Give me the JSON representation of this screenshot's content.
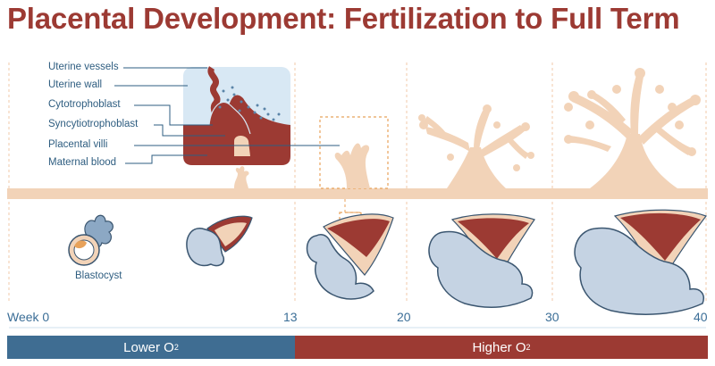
{
  "title": "Placental Development: Fertilization to Full Term",
  "labels": {
    "uterine_vessels": "Uterine vessels",
    "uterine_wall": "Uterine wall",
    "cytotrophoblast": "Cytotrophoblast",
    "syncytiotrophoblast": "Syncytiotrophoblast",
    "placental_villi": "Placental villi",
    "maternal_blood": "Maternal blood",
    "blastocyst": "Blastocyst"
  },
  "timeline": {
    "weeks": [
      {
        "label": "Week 0",
        "week": 0
      },
      {
        "label": "13",
        "week": 13
      },
      {
        "label": "20",
        "week": 20
      },
      {
        "label": "30",
        "week": 30
      },
      {
        "label": "40",
        "week": 40
      }
    ]
  },
  "oxygen": {
    "lower": {
      "text": "Lower O",
      "sub": "2",
      "from_week": 0,
      "to_week": 13,
      "color": "#3f6d92"
    },
    "higher": {
      "text": "Higher O",
      "sub": "2",
      "from_week": 13,
      "to_week": 40,
      "color": "#9c3a33"
    }
  },
  "colors": {
    "title": "#9c3a33",
    "label": "#2e5d80",
    "tissue": "#f2d3b8",
    "blood": "#9c3a33",
    "fetus": "#c5d3e3",
    "outline": "#3b5670",
    "accent_orange": "#e8a25a"
  }
}
